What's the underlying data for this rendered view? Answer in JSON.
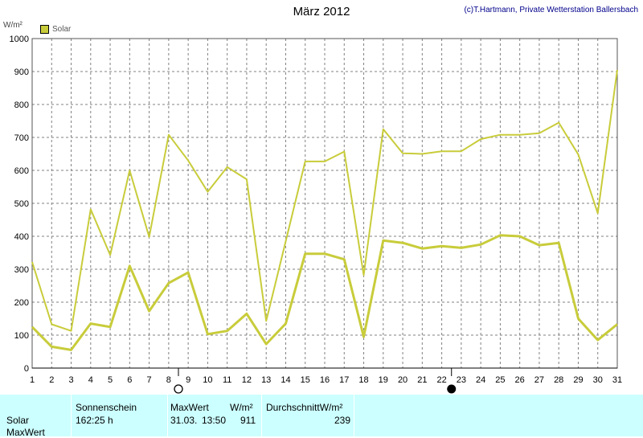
{
  "title": "März 2012",
  "copyright": "(c)T.Hartmann, Private Wetterstation Ballersbach",
  "chart_data": {
    "type": "line",
    "ylabel": "W/m²",
    "ylim": [
      0,
      1000
    ],
    "yticks": [
      0,
      100,
      200,
      300,
      400,
      500,
      600,
      700,
      800,
      900,
      1000
    ],
    "x": [
      1,
      2,
      3,
      4,
      5,
      6,
      7,
      8,
      9,
      10,
      11,
      12,
      13,
      14,
      15,
      16,
      17,
      18,
      19,
      20,
      21,
      22,
      23,
      24,
      25,
      26,
      27,
      28,
      29,
      30,
      31
    ],
    "series": [
      {
        "name": "Solar",
        "values": [
          322,
          133,
          113,
          482,
          343,
          600,
          398,
          708,
          630,
          535,
          610,
          573,
          143,
          385,
          627,
          627,
          657,
          282,
          725,
          652,
          650,
          658,
          658,
          695,
          708,
          708,
          713,
          745,
          648,
          470,
          905
        ]
      },
      {
        "name": "",
        "values": [
          125,
          65,
          55,
          135,
          125,
          310,
          173,
          258,
          290,
          103,
          113,
          165,
          73,
          135,
          347,
          347,
          330,
          95,
          387,
          380,
          363,
          370,
          365,
          375,
          403,
          400,
          373,
          380,
          150,
          85,
          133
        ]
      }
    ],
    "colors": {
      "max": "#c8cc3a",
      "avg": "#c8cc3a",
      "grid": "#808080"
    },
    "legend_position": "top-left",
    "grid": true,
    "moon_markers": [
      {
        "day": 8,
        "phase": "full-moon"
      },
      {
        "day": 22,
        "phase": "new-moon"
      }
    ]
  },
  "table": {
    "row_label_solar": "Solar",
    "row_label_max": "MaxWert",
    "sonnenschein_header": "Sonnenschein",
    "sonnenschein_value": "162:25 h",
    "maxwert_header": "MaxWert",
    "unit_header": "W/m²",
    "maxwert_date": "31.03.",
    "maxwert_time": "13:50",
    "maxwert_value": "911",
    "avg_header": "DurchschnittW/m²",
    "avg_value": "239"
  }
}
